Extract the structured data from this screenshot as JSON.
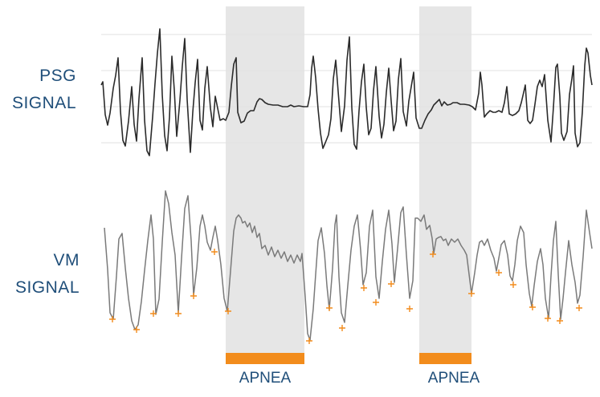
{
  "labels": {
    "psg_line1": "PSG",
    "psg_line2": "SIGNAL",
    "vm_line1": "VM",
    "vm_line2": "SIGNAL",
    "apnea": [
      "APNEA",
      "APNEA"
    ]
  },
  "colors": {
    "label_text": "#1f4e79",
    "psg_signal": "#2b2b2b",
    "vm_signal": "#7a7a7a",
    "apnea_shade": "#e6e6e6",
    "apnea_bar": "#f28c1c",
    "marker": "#f28c1c",
    "gridline": "#e2e2e2"
  }
}
